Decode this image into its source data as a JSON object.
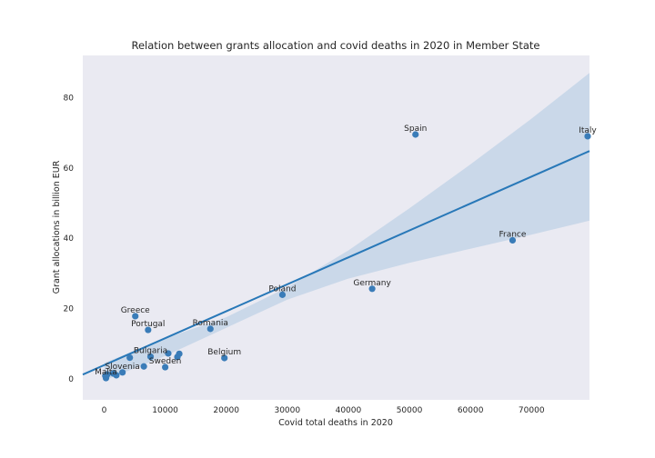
{
  "chart_data": {
    "type": "scatter",
    "title": "Relation between grants allocation and covid deaths in 2020 in Member State",
    "xlabel": "Covid total deaths in 2020",
    "ylabel": "Grant allocations in billion EUR",
    "xlim": [
      -3500,
      79500
    ],
    "ylim": [
      -6,
      92
    ],
    "xticks": [
      0,
      10000,
      20000,
      30000,
      40000,
      50000,
      60000,
      70000
    ],
    "yticks": [
      0,
      20,
      40,
      60,
      80
    ],
    "grid": false,
    "colors": {
      "background": "#eaeaf2",
      "points": "#3a7cb8",
      "line": "#2878b8",
      "band": "#c6d6e8"
    },
    "regression": {
      "x": [
        -3500,
        79500
      ],
      "y": [
        1.2,
        64.8
      ]
    },
    "confidence_band": {
      "x": [
        0,
        10000,
        20000,
        30000,
        40000,
        50000,
        60000,
        70000,
        79500
      ],
      "lower": [
        -0.5,
        6.5,
        14.5,
        22.5,
        28.5,
        33.0,
        37.0,
        41.0,
        45.0
      ],
      "upper": [
        4.5,
        11.5,
        17.5,
        26.0,
        36.5,
        48.5,
        61.0,
        74.0,
        87.0
      ]
    },
    "points": [
      {
        "label": "Spain",
        "x": 51000,
        "y": 69.5
      },
      {
        "label": "Italy",
        "x": 79200,
        "y": 69.0
      },
      {
        "label": "France",
        "x": 66900,
        "y": 39.4
      },
      {
        "label": "Germany",
        "x": 43900,
        "y": 25.6
      },
      {
        "label": "Poland",
        "x": 29200,
        "y": 23.9
      },
      {
        "label": "Greece",
        "x": 5100,
        "y": 17.8
      },
      {
        "label": "Portugal",
        "x": 7200,
        "y": 13.9
      },
      {
        "label": "Romania",
        "x": 17400,
        "y": 14.2
      },
      {
        "label": "Belgium",
        "x": 19700,
        "y": 5.9
      },
      {
        "label": "Bulgaria",
        "x": 7600,
        "y": 6.3
      },
      {
        "label": "Sweden",
        "x": 10000,
        "y": 3.3
      },
      {
        "label": "Slovenia",
        "x": 3000,
        "y": 1.8
      },
      {
        "label": "Malta",
        "x": 300,
        "y": 0.2
      },
      {
        "label": "",
        "x": 4200,
        "y": 6.0
      },
      {
        "label": "",
        "x": 10500,
        "y": 7.2
      },
      {
        "label": "",
        "x": 12300,
        "y": 7.1
      },
      {
        "label": "",
        "x": 12000,
        "y": 6.2
      },
      {
        "label": "",
        "x": 6500,
        "y": 3.5
      },
      {
        "label": "",
        "x": 2000,
        "y": 1.0
      },
      {
        "label": "",
        "x": 1500,
        "y": 1.5
      },
      {
        "label": "",
        "x": 500,
        "y": 1.2
      },
      {
        "label": "",
        "x": 200,
        "y": 0.8
      }
    ]
  }
}
